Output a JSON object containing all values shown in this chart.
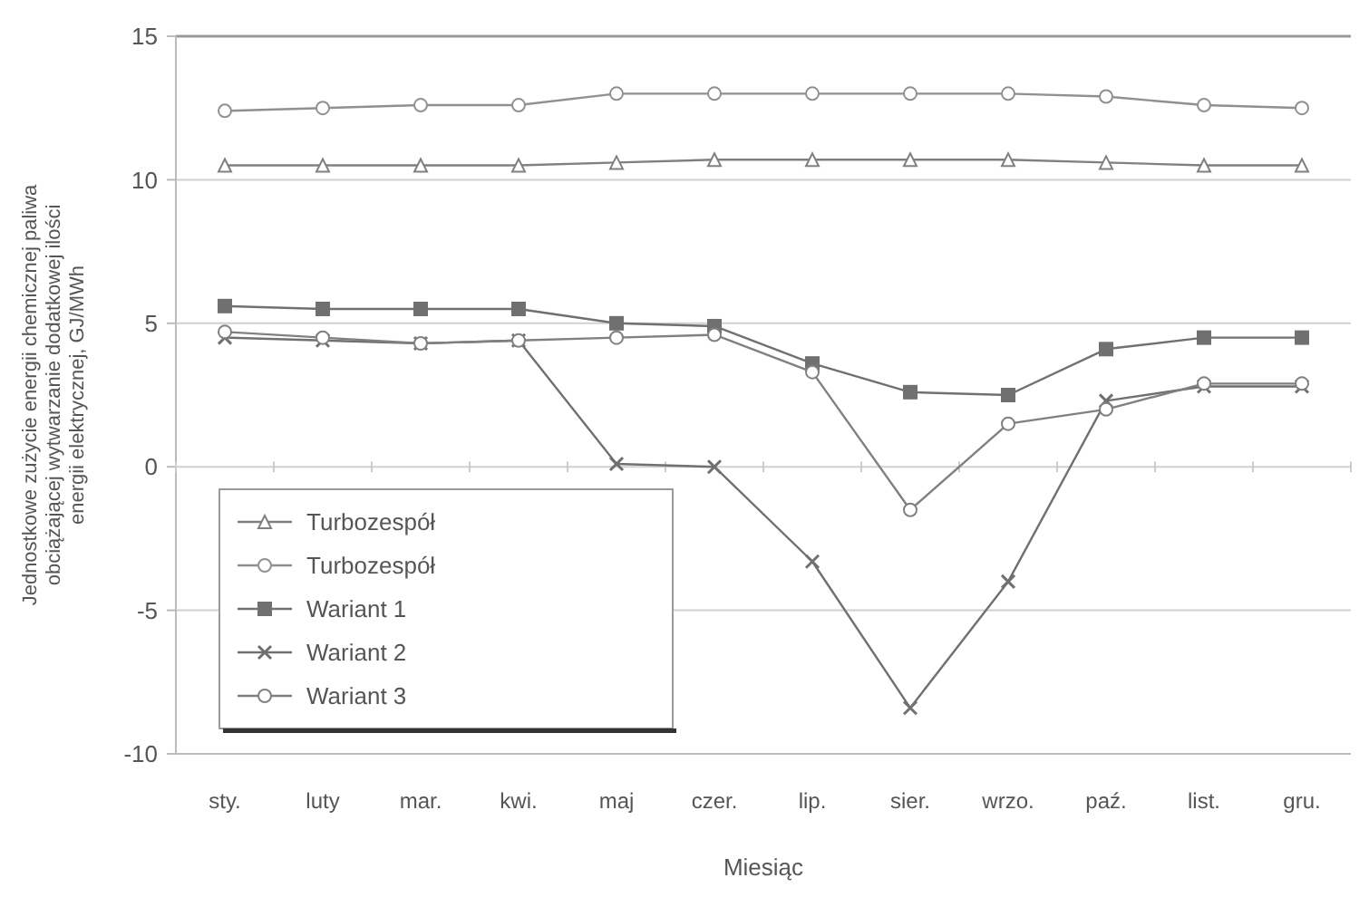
{
  "chart_data": {
    "type": "line",
    "xlabel": "Miesiąc",
    "ylabel": "Jednostkowe zużycie energii chemicznej paliwa obciążającej wytwarzanie dodatkowej ilości energii elektrycznej, GJ/MWh",
    "categories": [
      "sty.",
      "luty",
      "mar.",
      "kwi.",
      "maj",
      "czer.",
      "lip.",
      "sier.",
      "wrzo.",
      "paź.",
      "list.",
      "gru."
    ],
    "ylim": [
      -10,
      15
    ],
    "yticks": [
      -10,
      -5,
      0,
      5,
      10,
      15
    ],
    "grid": "y",
    "legend": "bottom left",
    "line_style": "solid",
    "series": [
      {
        "name": "Turbozespół",
        "color": "#808080",
        "marker": "triangle",
        "values": [
          10.5,
          10.5,
          10.5,
          10.5,
          10.6,
          10.7,
          10.7,
          10.7,
          10.7,
          10.6,
          10.5,
          10.5
        ]
      },
      {
        "name": "Turbozespół",
        "color": "#909090",
        "marker": "circle",
        "values": [
          12.4,
          12.5,
          12.6,
          12.6,
          13,
          13,
          13,
          13,
          13,
          12.9,
          12.6,
          12.5
        ]
      },
      {
        "name": "Wariant 1",
        "color": "#707070",
        "marker": "square",
        "values": [
          5.6,
          5.5,
          5.5,
          5.5,
          5,
          4.9,
          3.6,
          2.6,
          2.5,
          4.1,
          4.5,
          4.5
        ]
      },
      {
        "name": "Wariant 2",
        "color": "#707070",
        "marker": "cross",
        "values": [
          4.5,
          4.4,
          4.3,
          4.4,
          0.1,
          0,
          -3.3,
          -8.4,
          -4,
          2.3,
          2.8,
          2.8
        ]
      },
      {
        "name": "Wariant 3",
        "color": "#808080",
        "marker": "circle",
        "values": [
          4.7,
          4.5,
          4.3,
          4.4,
          4.5,
          4.6,
          3.3,
          -1.5,
          1.5,
          2,
          2.9,
          2.9
        ]
      }
    ]
  }
}
